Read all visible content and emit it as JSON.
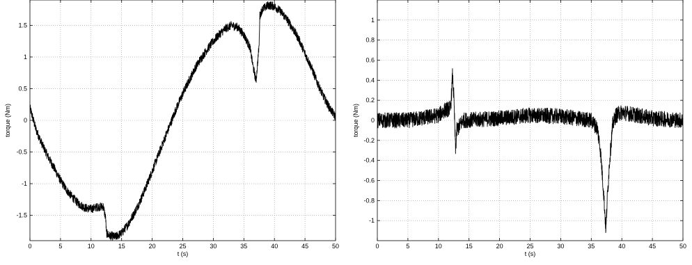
{
  "chart_data": [
    {
      "type": "line",
      "xlabel": "t (s)",
      "ylabel": "torque (Nm)",
      "xlim": [
        0,
        50
      ],
      "ylim": [
        -1.9,
        1.9
      ],
      "xticks": [
        "0",
        "5",
        "10",
        "15",
        "20",
        "25",
        "30",
        "35",
        "40",
        "45",
        "50"
      ],
      "yticks": [
        "-1.5",
        "-1",
        "-0.5",
        "0",
        "0.5",
        "1",
        "1.5"
      ],
      "ytick_values": [
        -1.5,
        -1,
        -0.5,
        0,
        0.5,
        1,
        1.5
      ],
      "grid": true,
      "noise_amplitude": 0.07,
      "series": [
        {
          "x": [
            0,
            1,
            2,
            3,
            4,
            5,
            6,
            7,
            8,
            9,
            10,
            11,
            12,
            12.4,
            12.5,
            13,
            14,
            15,
            16,
            17,
            18,
            19,
            20,
            21,
            22,
            23,
            24,
            25,
            26,
            27,
            28,
            29,
            30,
            31,
            32,
            33,
            34,
            35,
            36,
            36.5,
            37,
            37.5,
            37.6,
            38,
            39,
            40,
            41,
            42,
            43,
            44,
            45,
            46,
            47,
            48,
            49,
            50
          ],
          "y": [
            0.2,
            -0.15,
            -0.38,
            -0.58,
            -0.76,
            -0.95,
            -1.1,
            -1.22,
            -1.32,
            -1.38,
            -1.4,
            -1.37,
            -1.36,
            -1.55,
            -1.78,
            -1.82,
            -1.84,
            -1.78,
            -1.65,
            -1.48,
            -1.28,
            -1.05,
            -0.8,
            -0.55,
            -0.3,
            -0.05,
            0.2,
            0.42,
            0.62,
            0.82,
            0.98,
            1.12,
            1.25,
            1.36,
            1.45,
            1.5,
            1.47,
            1.35,
            1.15,
            0.85,
            0.62,
            1.2,
            1.65,
            1.75,
            1.82,
            1.8,
            1.72,
            1.6,
            1.45,
            1.28,
            1.05,
            0.85,
            0.6,
            0.38,
            0.2,
            0.05
          ]
        }
      ]
    },
    {
      "type": "line",
      "xlabel": "t (s)",
      "ylabel": "torque (Nm)",
      "xlim": [
        0,
        50
      ],
      "ylim": [
        -1.2,
        1.2
      ],
      "xticks": [
        "0",
        "5",
        "10",
        "15",
        "20",
        "25",
        "30",
        "35",
        "40",
        "45",
        "50"
      ],
      "yticks": [
        "-1",
        "-0.8",
        "-0.6",
        "-0.4",
        "-0.2",
        "0",
        "0.2",
        "0.4",
        "0.6",
        "0.8",
        "1"
      ],
      "ytick_values": [
        -1,
        -0.8,
        -0.6,
        -0.4,
        -0.2,
        0,
        0.2,
        0.4,
        0.6,
        0.8,
        1
      ],
      "grid": true,
      "noise_amplitude": 0.08,
      "series": [
        {
          "x": [
            0,
            5,
            10,
            11,
            12,
            12.3,
            12.5,
            12.8,
            13,
            13.5,
            14,
            20,
            25,
            30,
            35,
            36,
            36.5,
            37,
            37.4,
            37.6,
            38,
            38.5,
            39,
            40,
            45,
            50
          ],
          "y": [
            0,
            0,
            0.05,
            0.1,
            0.12,
            0.45,
            0.25,
            -0.3,
            -0.1,
            -0.05,
            0,
            0.02,
            0.05,
            0.04,
            0,
            -0.08,
            -0.3,
            -0.7,
            -1.1,
            -0.8,
            -0.4,
            -0.05,
            0.05,
            0.08,
            0.02,
            0
          ]
        }
      ]
    }
  ]
}
